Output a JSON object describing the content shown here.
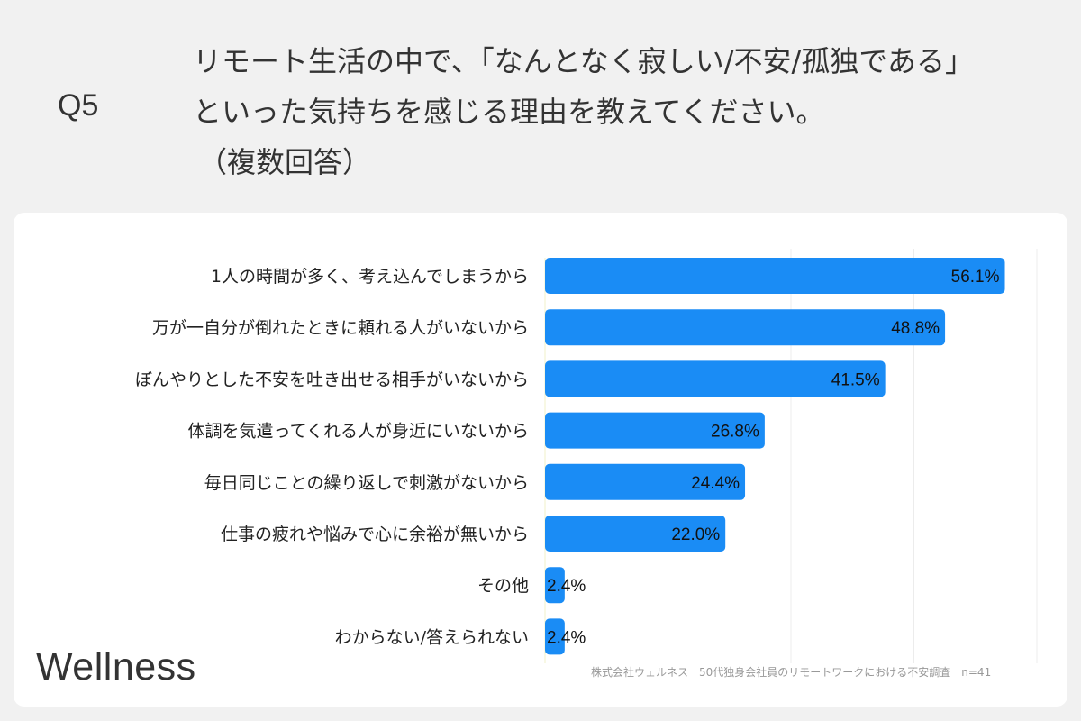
{
  "header": {
    "question_number": "Q5",
    "question_line1": "リモート生活の中で、「なんとなく寂しい/不安/孤独である」",
    "question_line2": "といった気持ちを感じる理由を教えてください。",
    "question_note": "（複数回答）"
  },
  "chart_data": {
    "type": "bar",
    "orientation": "horizontal",
    "categories": [
      "1人の時間が多く、考え込んでしまうから",
      "万が一自分が倒れたときに頼れる人がいないから",
      "ぼんやりとした不安を吐き出せる相手がいないから",
      "体調を気遣ってくれる人が身近にいないから",
      "毎日同じことの繰り返しで刺激がないから",
      "仕事の疲れや悩みで心に余裕が無いから",
      "その他",
      "わからない/答えられない"
    ],
    "values": [
      56.1,
      48.8,
      41.5,
      26.8,
      24.4,
      22.0,
      2.4,
      2.4
    ],
    "value_labels": [
      "56.1%",
      "48.8%",
      "41.5%",
      "26.8%",
      "24.4%",
      "22.0%",
      "2.4%",
      "2.4%"
    ],
    "xlim": [
      0,
      60
    ],
    "grid": true,
    "bar_color": "#1a8cf5"
  },
  "footer": {
    "brand": "Wellness",
    "source": "株式会社ウェルネス　50代独身会社員のリモートワークにおける不安調査　n=41"
  }
}
